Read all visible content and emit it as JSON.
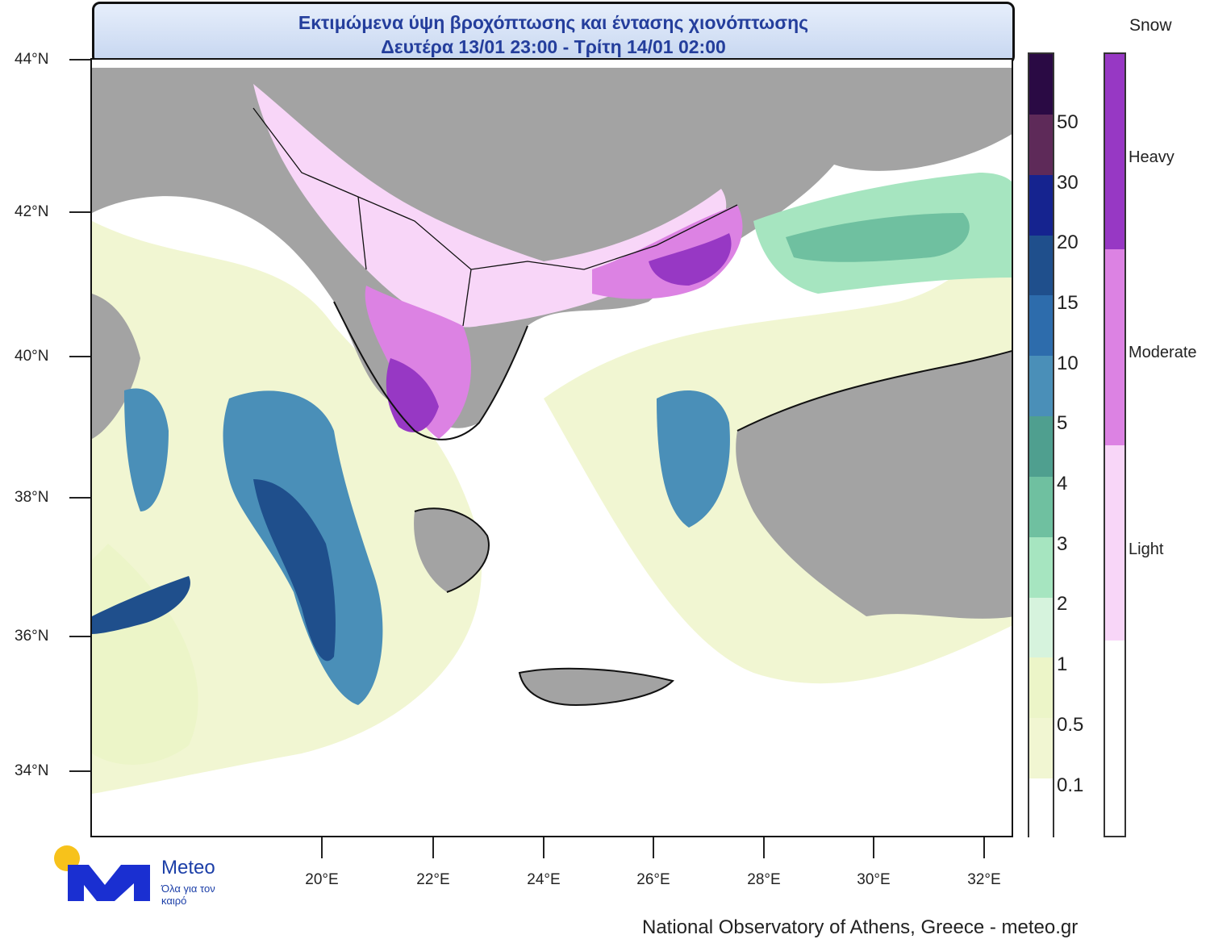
{
  "title": {
    "line1": "Εκτιμώμενα ύψη βροχόπτωσης και έντασης χιονόπτωσης",
    "line2": "Δευτέρα 13/01 23:00 - Τρίτη 14/01 02:00"
  },
  "axes": {
    "latitudes": [
      "44°N",
      "42°N",
      "40°N",
      "38°N",
      "36°N",
      "34°N"
    ],
    "longitudes": [
      "20°E",
      "22°E",
      "24°E",
      "26°E",
      "28°E",
      "30°E",
      "32°E"
    ]
  },
  "rain_legend": {
    "labels": [
      "50",
      "30",
      "20",
      "15",
      "10",
      "5",
      "4",
      "3",
      "2",
      "1",
      "0.5",
      "0.1"
    ],
    "colors": [
      "#2a0a44",
      "#5e2a59",
      "#15238f",
      "#1f4f8c",
      "#2d6cac",
      "#4a8fb8",
      "#4f9f8f",
      "#6fc0a0",
      "#a6e5c0",
      "#d6f3dd",
      "#ecf5c8",
      "#f1f6d2",
      "#ffffff"
    ]
  },
  "snow_legend": {
    "title": "Snow",
    "labels": [
      "Heavy",
      "Moderate",
      "Light"
    ],
    "colors": [
      "#9738c4",
      "#dc82e3",
      "#f8d6f8",
      "#ffffff"
    ]
  },
  "logo": {
    "name": "Meteo",
    "tagline": "Όλα για τον καιρό",
    "colors": {
      "brand": "#1a2fd1",
      "sun": "#f7c21b"
    }
  },
  "credit": "National Observatory of Athens, Greece - meteo.gr"
}
